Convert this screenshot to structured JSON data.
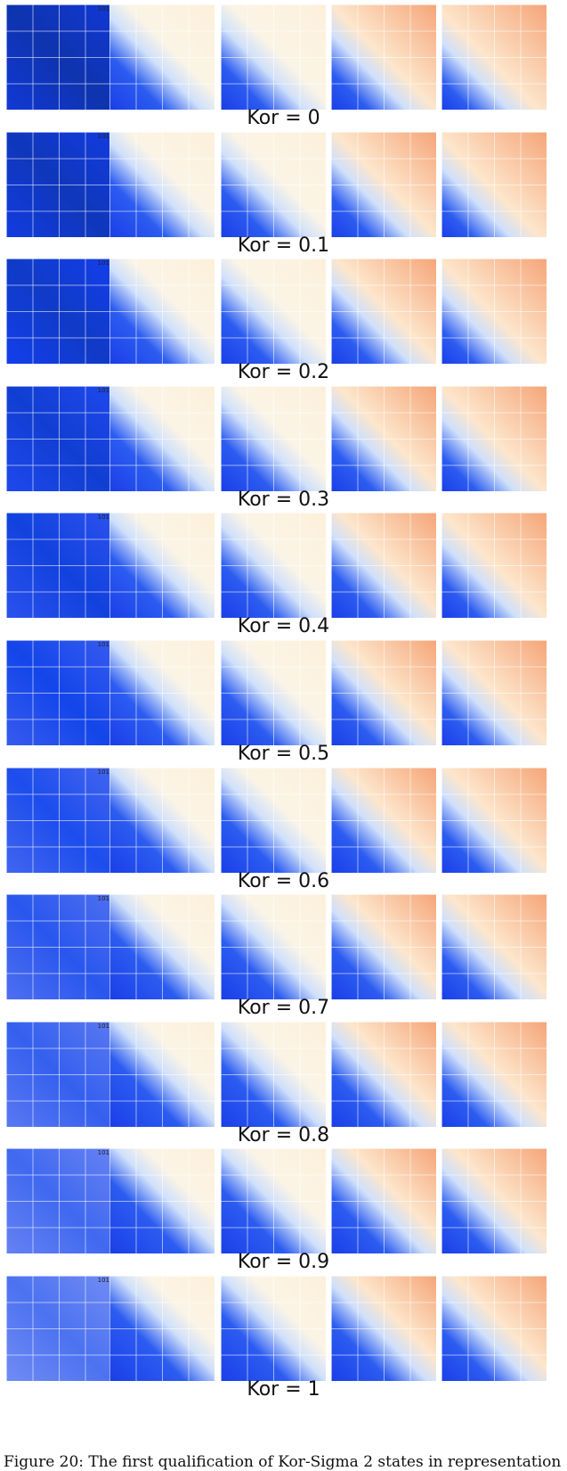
{
  "figure": {
    "corner_label": "101",
    "rows": [
      {
        "label": "Kor = 0"
      },
      {
        "label": "Kor = 0.1"
      },
      {
        "label": "Kor = 0.2"
      },
      {
        "label": "Kor = 0.3"
      },
      {
        "label": "Kor = 0.4"
      },
      {
        "label": "Kor = 0.5"
      },
      {
        "label": "Kor = 0.6"
      },
      {
        "label": "Kor = 0.7"
      },
      {
        "label": "Kor = 0.8"
      },
      {
        "label": "Kor = 0.9"
      },
      {
        "label": "Kor = 1"
      }
    ],
    "caption": "Figure 20: The first qualification of Kor-Sigma 2 states in representation"
  }
}
